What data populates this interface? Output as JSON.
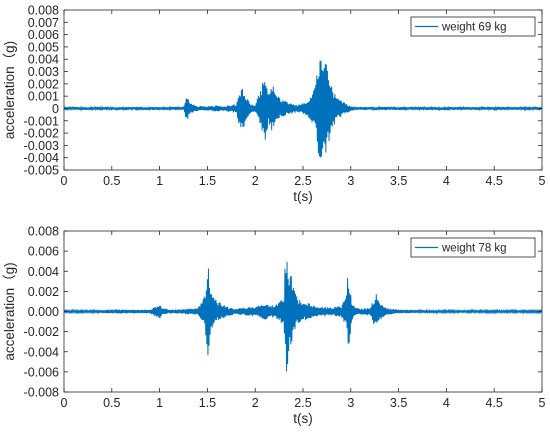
{
  "chart_data": [
    {
      "type": "line",
      "xlabel": "t(s)",
      "ylabel": "acceleration（g)",
      "xlim": [
        0,
        5
      ],
      "ylim": [
        -0.005,
        0.008
      ],
      "xticks": [
        0,
        0.5,
        1,
        1.5,
        2,
        2.5,
        3,
        3.5,
        4,
        4.5,
        5
      ],
      "xtick_labels": [
        "0",
        "0.5",
        "1",
        "1.5",
        "2",
        "2.5",
        "3",
        "3.5",
        "4",
        "4.5",
        "5"
      ],
      "yticks": [
        -0.005,
        -0.004,
        -0.003,
        -0.002,
        -0.001,
        0,
        0.001,
        0.002,
        0.003,
        0.004,
        0.005,
        0.006,
        0.007,
        0.008
      ],
      "ytick_labels": [
        "-0.005",
        "-0.004",
        "-0.003",
        "-0.002",
        "-0.001",
        "0",
        "0.001",
        "0.002",
        "0.003",
        "0.004",
        "0.005",
        "0.006",
        "0.007",
        "0.008"
      ],
      "grid": false,
      "legend_position": "top-right",
      "color": "#0072BD",
      "series": [
        {
          "name": "weight 69 kg",
          "x": [
            0,
            0.5,
            1.0,
            1.2,
            1.25,
            1.27,
            1.29,
            1.31,
            1.33,
            1.36,
            1.4,
            1.45,
            1.5,
            1.55,
            1.6,
            1.65,
            1.7,
            1.72,
            1.75,
            1.78,
            1.8,
            1.83,
            1.85,
            1.88,
            1.9,
            1.93,
            1.96,
            2.0,
            2.05,
            2.08,
            2.1,
            2.12,
            2.14,
            2.17,
            2.2,
            2.23,
            2.26,
            2.3,
            2.35,
            2.4,
            2.45,
            2.5,
            2.55,
            2.6,
            2.63,
            2.65,
            2.67,
            2.69,
            2.71,
            2.73,
            2.75,
            2.77,
            2.79,
            2.81,
            2.85,
            2.9,
            2.95,
            3.0,
            3.1,
            3.5,
            4.0,
            4.5,
            5.0
          ],
          "y": [
            0,
            0.0001,
            0,
            0,
            0.0001,
            0.0009,
            -0.0012,
            0.0006,
            -0.0004,
            0.0003,
            -0.0002,
            0.0002,
            -0.0002,
            0.0002,
            -0.0003,
            0.0002,
            -0.0002,
            0.0003,
            0.0002,
            0.0004,
            -0.0003,
            0.0013,
            -0.0018,
            0.0017,
            -0.001,
            0.0007,
            -0.0004,
            0.0003,
            -0.0014,
            0.0022,
            -0.0028,
            0.0026,
            -0.0012,
            0.0021,
            -0.0017,
            0.0012,
            -0.0008,
            0.0007,
            -0.0005,
            0.0004,
            -0.0003,
            0.0005,
            -0.0007,
            0.0012,
            -0.002,
            0.0038,
            -0.0039,
            0.0044,
            -0.0033,
            0.0049,
            -0.0038,
            0.003,
            -0.002,
            0.0018,
            -0.001,
            0.0007,
            -0.0004,
            0.0002,
            0.0001,
            0,
            0.0001,
            0,
            0
          ]
        }
      ]
    },
    {
      "type": "line",
      "xlabel": "t(s)",
      "ylabel": "acceleration（g)",
      "xlim": [
        0,
        5
      ],
      "ylim": [
        -0.008,
        0.008
      ],
      "xticks": [
        0,
        0.5,
        1,
        1.5,
        2,
        2.5,
        3,
        3.5,
        4,
        4.5,
        5
      ],
      "xtick_labels": [
        "0",
        "0.5",
        "1",
        "1.5",
        "2",
        "2.5",
        "3",
        "3.5",
        "4",
        "4.5",
        "5"
      ],
      "yticks": [
        -0.008,
        -0.006,
        -0.004,
        -0.002,
        0,
        0.002,
        0.004,
        0.006,
        0.008
      ],
      "ytick_labels": [
        "-0.008",
        "-0.006",
        "-0.004",
        "-0.002",
        "0.000",
        "0.002",
        "0.004",
        "0.006",
        "0.008"
      ],
      "grid": false,
      "legend_position": "top-right",
      "color": "#0072BD",
      "series": [
        {
          "name": "weight 78 kg",
          "x": [
            0,
            0.5,
            0.9,
            1.0,
            1.02,
            1.05,
            1.1,
            1.2,
            1.3,
            1.4,
            1.45,
            1.48,
            1.5,
            1.52,
            1.54,
            1.56,
            1.58,
            1.6,
            1.65,
            1.7,
            1.8,
            1.9,
            2.0,
            2.1,
            2.2,
            2.25,
            2.28,
            2.3,
            2.32,
            2.34,
            2.36,
            2.38,
            2.4,
            2.42,
            2.45,
            2.5,
            2.55,
            2.6,
            2.7,
            2.8,
            2.9,
            2.95,
            2.97,
            2.99,
            3.01,
            3.03,
            3.05,
            3.1,
            3.2,
            3.25,
            3.27,
            3.29,
            3.31,
            3.35,
            3.4,
            3.5,
            4.0,
            4.5,
            5.0
          ],
          "y": [
            0,
            0.0002,
            -0.0002,
            0.0008,
            -0.0004,
            0.0003,
            -0.0002,
            0.0002,
            -0.0003,
            0.0004,
            -0.001,
            0.0022,
            0.0047,
            -0.004,
            0.002,
            -0.0018,
            0.0015,
            -0.001,
            0.0008,
            -0.0005,
            0.0003,
            -0.0004,
            0.0005,
            -0.0008,
            0.0006,
            -0.001,
            0.0012,
            -0.0015,
            0.0066,
            -0.0062,
            0.004,
            -0.0038,
            0.0025,
            -0.0018,
            0.0013,
            -0.0008,
            0.001,
            -0.0006,
            0.0005,
            -0.0004,
            0.0006,
            -0.0015,
            0.0041,
            -0.003,
            0.0012,
            -0.0008,
            0.0004,
            -0.0003,
            0.0004,
            -0.0015,
            0.0018,
            -0.0012,
            0.001,
            -0.0005,
            0.0003,
            -0.0002,
            0.0001,
            0,
            0
          ]
        }
      ]
    }
  ]
}
